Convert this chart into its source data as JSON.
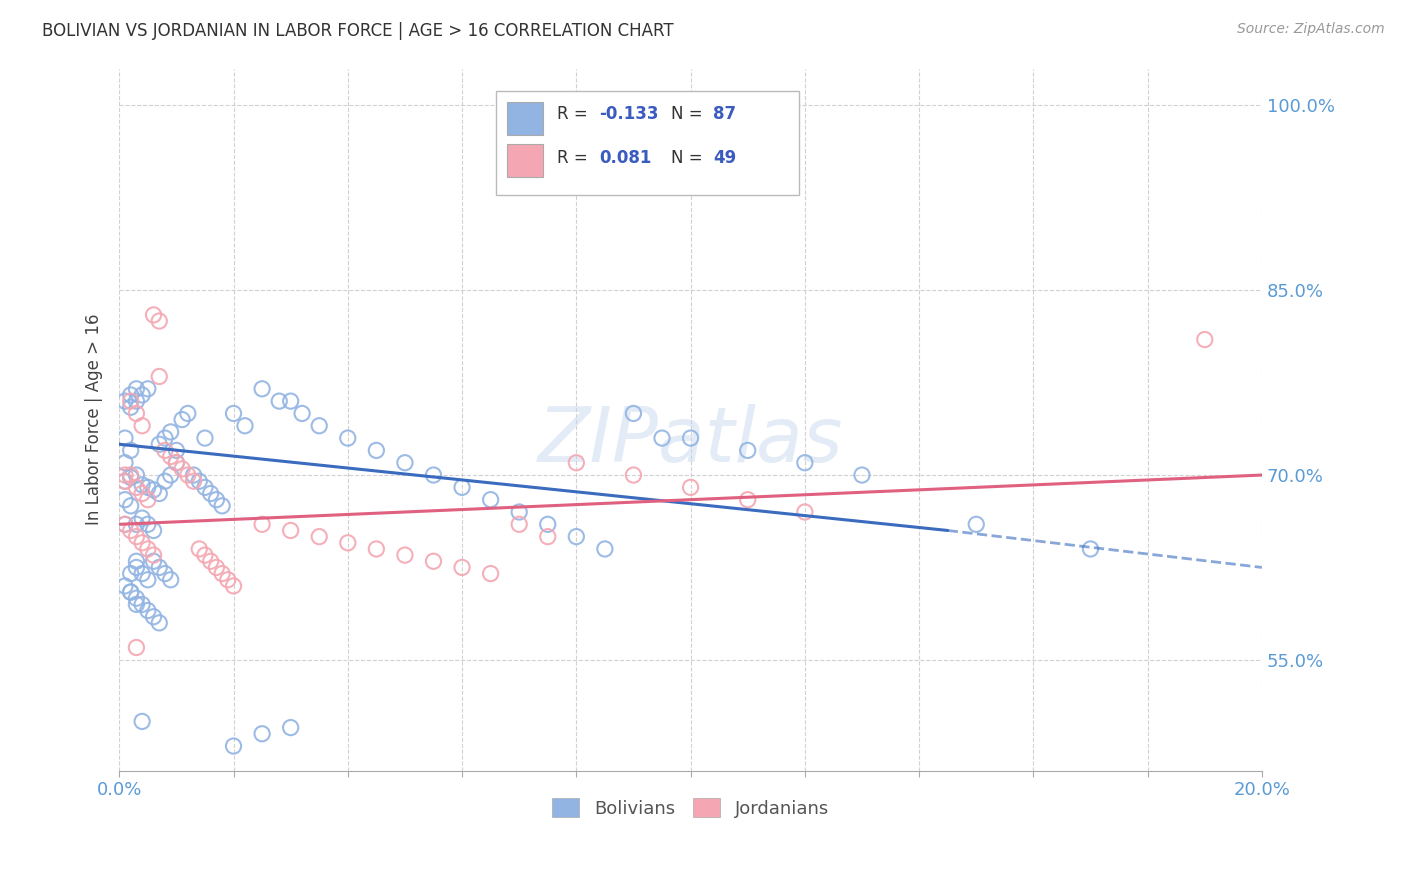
{
  "title": "BOLIVIAN VS JORDANIAN IN LABOR FORCE | AGE > 16 CORRELATION CHART",
  "source_text": "Source: ZipAtlas.com",
  "ylabel": "In Labor Force | Age > 16",
  "xlim": [
    0.0,
    0.2
  ],
  "ylim": [
    0.46,
    1.03
  ],
  "yticks": [
    0.55,
    0.7,
    0.85,
    1.0
  ],
  "ytick_labels": [
    "55.0%",
    "70.0%",
    "85.0%",
    "100.0%"
  ],
  "blue_color": "#92b4e3",
  "pink_color": "#f4a7b2",
  "blue_line_color": "#3a6bbf",
  "pink_line_color": "#e06080",
  "watermark": "ZIPatlas",
  "background_color": "#ffffff",
  "grid_color": "#cccccc",
  "blue_scatter_x": [
    0.001,
    0.001,
    0.001,
    0.001,
    0.001,
    0.001,
    0.002,
    0.002,
    0.002,
    0.002,
    0.002,
    0.002,
    0.003,
    0.003,
    0.003,
    0.003,
    0.003,
    0.004,
    0.004,
    0.004,
    0.004,
    0.005,
    0.005,
    0.005,
    0.005,
    0.006,
    0.006,
    0.006,
    0.007,
    0.007,
    0.007,
    0.008,
    0.008,
    0.009,
    0.009,
    0.01,
    0.01,
    0.011,
    0.012,
    0.013,
    0.014,
    0.015,
    0.015,
    0.016,
    0.017,
    0.018,
    0.02,
    0.022,
    0.025,
    0.028,
    0.03,
    0.032,
    0.035,
    0.04,
    0.045,
    0.05,
    0.055,
    0.06,
    0.065,
    0.07,
    0.075,
    0.08,
    0.085,
    0.09,
    0.095,
    0.1,
    0.002,
    0.003,
    0.003,
    0.004,
    0.005,
    0.006,
    0.007,
    0.008,
    0.009,
    0.001,
    0.002,
    0.003,
    0.004,
    0.02,
    0.025,
    0.03,
    0.11,
    0.12,
    0.13,
    0.15,
    0.17
  ],
  "blue_scatter_y": [
    0.695,
    0.71,
    0.73,
    0.76,
    0.68,
    0.66,
    0.698,
    0.72,
    0.755,
    0.765,
    0.675,
    0.605,
    0.7,
    0.76,
    0.77,
    0.66,
    0.6,
    0.692,
    0.765,
    0.665,
    0.595,
    0.69,
    0.77,
    0.66,
    0.59,
    0.688,
    0.655,
    0.585,
    0.685,
    0.725,
    0.58,
    0.695,
    0.73,
    0.7,
    0.735,
    0.71,
    0.72,
    0.745,
    0.75,
    0.7,
    0.695,
    0.69,
    0.73,
    0.685,
    0.68,
    0.675,
    0.75,
    0.74,
    0.77,
    0.76,
    0.76,
    0.75,
    0.74,
    0.73,
    0.72,
    0.71,
    0.7,
    0.69,
    0.68,
    0.67,
    0.66,
    0.65,
    0.64,
    0.75,
    0.73,
    0.73,
    0.62,
    0.625,
    0.63,
    0.62,
    0.615,
    0.63,
    0.625,
    0.62,
    0.615,
    0.61,
    0.605,
    0.595,
    0.5,
    0.48,
    0.49,
    0.495,
    0.72,
    0.71,
    0.7,
    0.66,
    0.64
  ],
  "pink_scatter_x": [
    0.001,
    0.001,
    0.001,
    0.002,
    0.002,
    0.002,
    0.003,
    0.003,
    0.003,
    0.004,
    0.004,
    0.004,
    0.005,
    0.005,
    0.006,
    0.006,
    0.007,
    0.007,
    0.008,
    0.009,
    0.01,
    0.011,
    0.012,
    0.013,
    0.014,
    0.015,
    0.016,
    0.017,
    0.018,
    0.019,
    0.02,
    0.025,
    0.03,
    0.035,
    0.04,
    0.045,
    0.05,
    0.055,
    0.06,
    0.065,
    0.07,
    0.075,
    0.08,
    0.09,
    0.1,
    0.11,
    0.12,
    0.19,
    0.003
  ],
  "pink_scatter_y": [
    0.695,
    0.66,
    0.7,
    0.7,
    0.655,
    0.76,
    0.69,
    0.65,
    0.75,
    0.685,
    0.645,
    0.74,
    0.68,
    0.64,
    0.83,
    0.635,
    0.825,
    0.78,
    0.72,
    0.715,
    0.71,
    0.705,
    0.7,
    0.695,
    0.64,
    0.635,
    0.63,
    0.625,
    0.62,
    0.615,
    0.61,
    0.66,
    0.655,
    0.65,
    0.645,
    0.64,
    0.635,
    0.63,
    0.625,
    0.62,
    0.66,
    0.65,
    0.71,
    0.7,
    0.69,
    0.68,
    0.67,
    0.81,
    0.56
  ]
}
